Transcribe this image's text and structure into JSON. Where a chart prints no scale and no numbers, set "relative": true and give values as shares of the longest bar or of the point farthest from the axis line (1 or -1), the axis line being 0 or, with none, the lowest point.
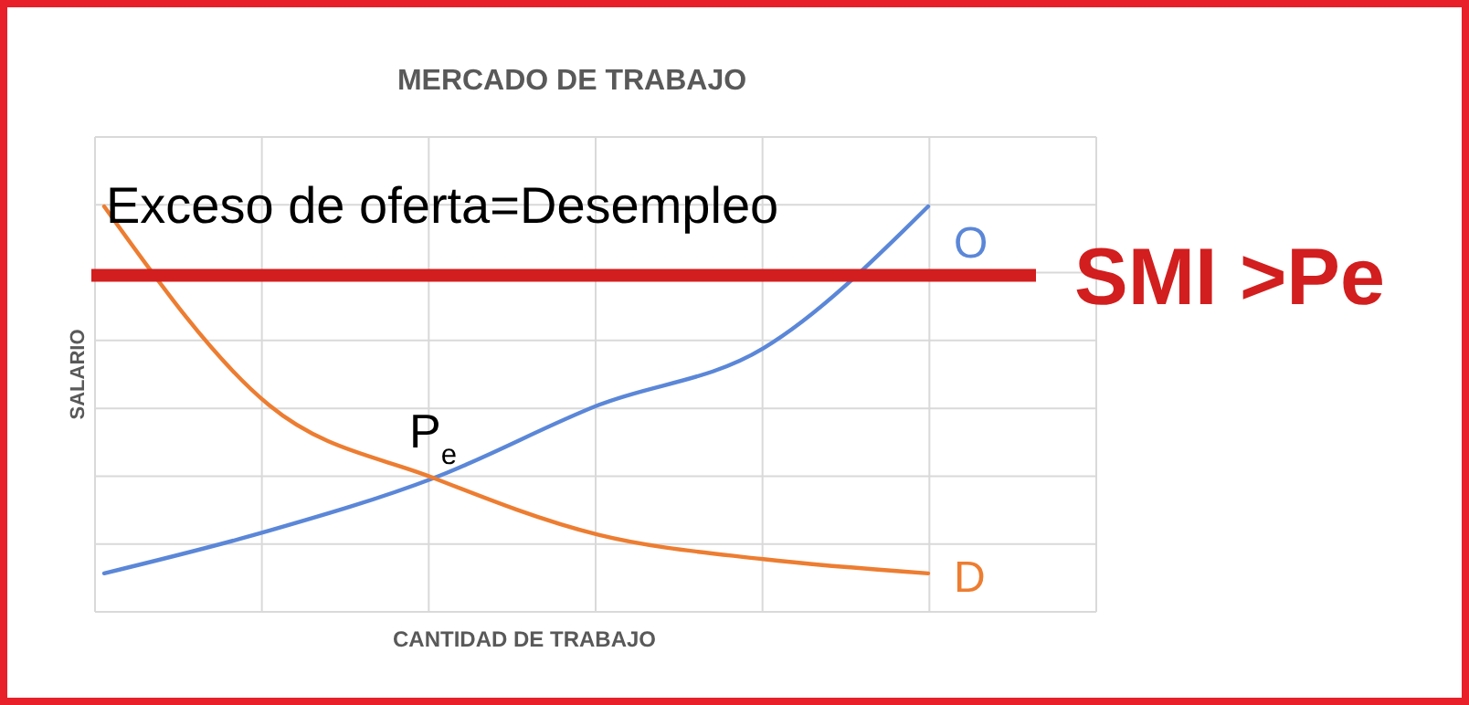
{
  "chart_data": {
    "type": "line",
    "title": "MERCADO DE TRABAJO",
    "xlabel": "CANTIDAD  DE TRABAJO",
    "ylabel": "SALARIO",
    "relative": true,
    "grid": true,
    "categories": [
      null,
      null,
      null,
      null,
      null,
      null
    ],
    "series": [
      {
        "name": "O",
        "color": "#5b87d8",
        "values": [
          0.095,
          0.2,
          0.33,
          0.51,
          0.65,
          1.0
        ]
      },
      {
        "name": "D",
        "color": "#ed7d31",
        "values": [
          1.0,
          0.51,
          0.33,
          0.19,
          0.13,
          0.095
        ]
      }
    ],
    "ref_lines": [
      {
        "axis": "y",
        "value": 0.83,
        "label": "SMI >Pe",
        "color": "#d21e1e",
        "line_style": "solid"
      }
    ],
    "annotations": [
      "Exceso de oferta=Desempleo",
      "P$_{e}$"
    ]
  }
}
